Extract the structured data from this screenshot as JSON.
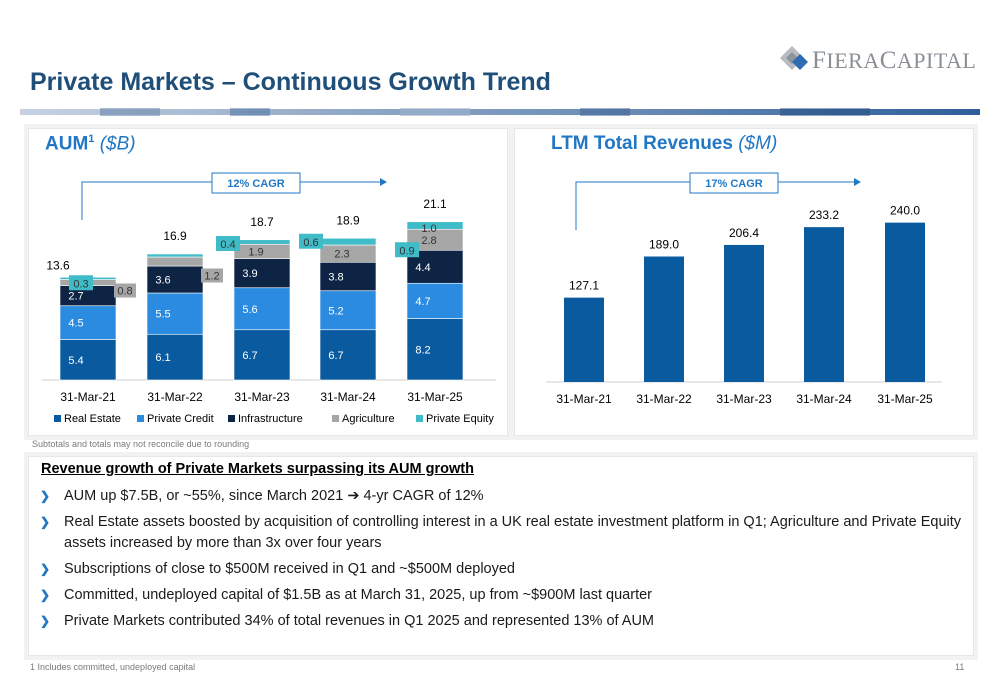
{
  "header": {
    "logo_text_1": "F",
    "logo_text_2": "IERA",
    "logo_text_3": "C",
    "logo_text_4": "APITAL",
    "title": "Private Markets – Continuous Growth Trend"
  },
  "colors": {
    "title_blue": "#1f4e79",
    "heading_blue": "#2277c4",
    "real_estate": "#0a5aa0",
    "private_credit": "#2a8be0",
    "infrastructure": "#0d2444",
    "agriculture": "#a6a6a6",
    "private_equity": "#40bcc8",
    "revenue_bar": "#0a5aa0"
  },
  "aum_panel": {
    "heading": "AUM",
    "heading_sup": "1",
    "heading_unit": "($B)",
    "cagr_label": "12% CAGR"
  },
  "rev_panel": {
    "heading": "LTM Total Revenues",
    "heading_unit": "($M)",
    "cagr_label": "17% CAGR"
  },
  "chart_data": [
    {
      "type": "bar",
      "stacked": true,
      "categories": [
        "31-Mar-21",
        "31-Mar-22",
        "31-Mar-23",
        "31-Mar-24",
        "31-Mar-25"
      ],
      "series": [
        {
          "name": "Real Estate",
          "values": [
            5.4,
            6.1,
            6.7,
            6.7,
            8.2
          ]
        },
        {
          "name": "Private Credit",
          "values": [
            4.5,
            5.5,
            5.6,
            5.2,
            4.7
          ]
        },
        {
          "name": "Infrastructure",
          "values": [
            2.7,
            3.6,
            3.9,
            3.8,
            4.4
          ]
        },
        {
          "name": "Agriculture",
          "values": [
            0.8,
            1.2,
            1.9,
            2.3,
            2.8
          ]
        },
        {
          "name": "Private Equity",
          "values": [
            0.3,
            0.4,
            0.6,
            0.9,
            1.0
          ]
        }
      ],
      "totals": [
        13.6,
        16.9,
        18.7,
        18.9,
        21.1
      ],
      "legend": "bottom"
    },
    {
      "type": "bar",
      "categories": [
        "31-Mar-21",
        "31-Mar-22",
        "31-Mar-23",
        "31-Mar-24",
        "31-Mar-25"
      ],
      "values": [
        127.1,
        189.0,
        206.4,
        233.2,
        240.0
      ],
      "value_labels": [
        "127.1",
        "189.0",
        "206.4",
        "233.2",
        "240.0"
      ]
    }
  ],
  "footnote_top": "Subtotals and totals may not reconcile due to rounding",
  "summary": {
    "heading": "Revenue growth of Private Markets surpassing its AUM growth",
    "bullet_1a": "AUM up $7.5B, or ~55%, since March 2021 ",
    "bullet_1_arrow": "➔",
    "bullet_1b": " 4-yr CAGR of 12%",
    "bullet_2": "Real Estate assets boosted by acquisition of controlling interest in a UK real estate investment platform in Q1; Agriculture and Private Equity assets increased by more than 3x over four years",
    "bullet_3": "Subscriptions of close to $500M received in Q1 and ~$500M deployed",
    "bullet_4": "Committed, undeployed capital of $1.5B as at March 31, 2025, up from ~$900M last quarter",
    "bullet_5": "Private Markets contributed 34% of total revenues in Q1 2025 and represented 13% of AUM",
    "bullet_marker": "❯"
  },
  "footnote_bottom": "1 Includes committed, undeployed capital",
  "page_number": "11"
}
